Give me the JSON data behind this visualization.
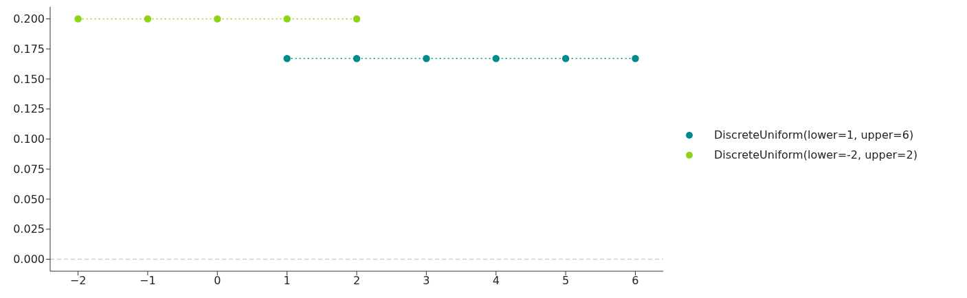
{
  "chart_data": {
    "type": "line",
    "series": [
      {
        "name": "DiscreteUniform(lower=1, upper=6)",
        "color": "#008b8b",
        "x": [
          1,
          2,
          3,
          4,
          5,
          6
        ],
        "values": [
          0.167,
          0.167,
          0.167,
          0.167,
          0.167,
          0.167
        ]
      },
      {
        "name": "DiscreteUniform(lower=-2, upper=2)",
        "color": "#8fd414",
        "x": [
          -2,
          -1,
          0,
          1,
          2
        ],
        "values": [
          0.2,
          0.2,
          0.2,
          0.2,
          0.2
        ]
      }
    ],
    "xlim": [
      -2.4,
      6.4
    ],
    "xticks": [
      {
        "value": -2,
        "label": "−2"
      },
      {
        "value": -1,
        "label": "−1"
      },
      0,
      1,
      2,
      3,
      4,
      5,
      6
    ],
    "ylim": [
      -0.01,
      0.21
    ],
    "yticks": [
      {
        "value": 0,
        "label": "0.000"
      },
      {
        "value": 0.025,
        "label": "0.025"
      },
      {
        "value": 0.05,
        "label": "0.050"
      },
      {
        "value": 0.075,
        "label": "0.075"
      },
      {
        "value": 0.1,
        "label": "0.100"
      },
      {
        "value": 0.125,
        "label": "0.125"
      },
      {
        "value": 0.15,
        "label": "0.150"
      },
      {
        "value": 0.175,
        "label": "0.175"
      },
      {
        "value": 0.2,
        "label": "0.200"
      }
    ],
    "ref_lines": [
      {
        "axis": "y",
        "value": 0,
        "color": "#cccccc",
        "line_style": "dashed"
      }
    ],
    "marker": "circle",
    "line_style": "dotted",
    "grid": false,
    "legend": "right"
  }
}
